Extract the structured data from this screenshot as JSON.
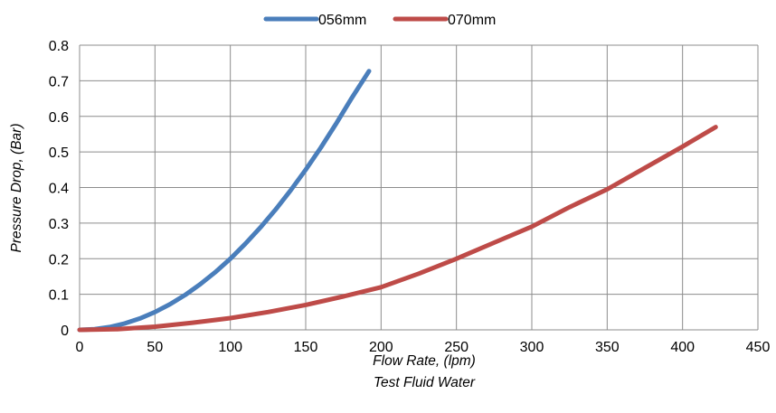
{
  "chart_data": {
    "type": "line",
    "title": "",
    "xlabel": "Flow Rate, (lpm)",
    "xlabel_line2": "Test Fluid Water",
    "ylabel": "Pressure Drop, (Bar)",
    "xlim": [
      0,
      450
    ],
    "ylim": [
      0,
      0.8
    ],
    "xticks": [
      "0",
      "50",
      "100",
      "150",
      "200",
      "250",
      "300",
      "350",
      "400",
      "450"
    ],
    "yticks": [
      "0",
      "0.1",
      "0.2",
      "0.3",
      "0.4",
      "0.5",
      "0.6",
      "0.7",
      "0.8"
    ],
    "grid": true,
    "legend": "top-center",
    "series": [
      {
        "name": "056mm",
        "color": "#4a7ebb",
        "x": [
          0,
          10,
          20,
          30,
          40,
          50,
          60,
          70,
          80,
          90,
          100,
          110,
          120,
          130,
          140,
          150,
          160,
          170,
          180,
          192
        ],
        "y": [
          0,
          0.002,
          0.008,
          0.018,
          0.032,
          0.05,
          0.072,
          0.098,
          0.128,
          0.162,
          0.2,
          0.242,
          0.288,
          0.338,
          0.392,
          0.45,
          0.512,
          0.578,
          0.648,
          0.727
        ]
      },
      {
        "name": "070mm",
        "color": "#be4b48",
        "x": [
          0,
          25,
          50,
          75,
          100,
          125,
          150,
          175,
          200,
          225,
          250,
          275,
          300,
          325,
          350,
          375,
          400,
          422
        ],
        "y": [
          0,
          0.002,
          0.009,
          0.02,
          0.033,
          0.05,
          0.07,
          0.094,
          0.12,
          0.158,
          0.2,
          0.245,
          0.29,
          0.345,
          0.395,
          0.455,
          0.515,
          0.57
        ]
      }
    ]
  }
}
